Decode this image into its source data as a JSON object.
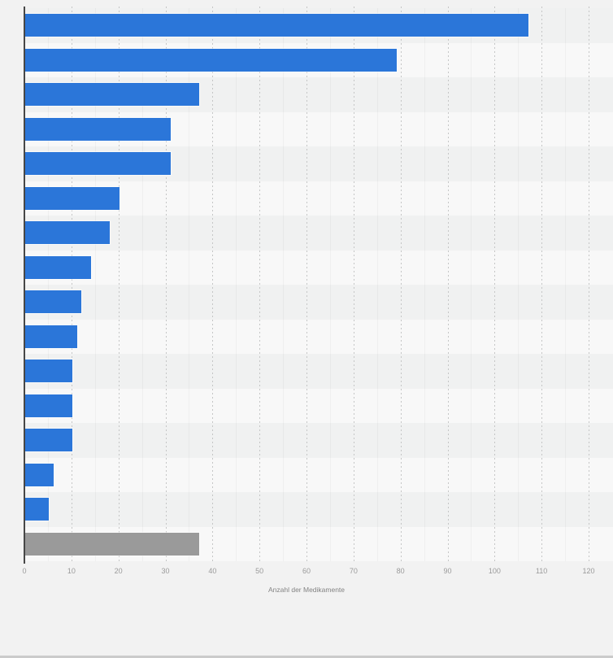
{
  "chart_data": {
    "type": "bar",
    "orientation": "horizontal",
    "title": "",
    "xlabel": "Anzahl der Medikamente",
    "ylabel": "",
    "xlim": [
      0,
      120
    ],
    "x_ticks": [
      0,
      10,
      20,
      30,
      40,
      50,
      60,
      70,
      80,
      90,
      100,
      110,
      120
    ],
    "x_tick_labels": [
      "0",
      "10",
      "20",
      "30",
      "40",
      "50",
      "60",
      "70",
      "80",
      "90",
      "100",
      "110",
      "120"
    ],
    "minor_tick_step": 5,
    "grid": "vertical-dashed-major-with-faint-minor",
    "legend": "none",
    "category_labels_visible": false,
    "values": [
      107,
      79,
      37,
      31,
      31,
      20,
      18,
      14,
      12,
      11,
      10,
      10,
      10,
      6,
      5,
      37
    ],
    "bar_colors": [
      "#2b76d9",
      "#2b76d9",
      "#2b76d9",
      "#2b76d9",
      "#2b76d9",
      "#2b76d9",
      "#2b76d9",
      "#2b76d9",
      "#2b76d9",
      "#2b76d9",
      "#2b76d9",
      "#2b76d9",
      "#2b76d9",
      "#2b76d9",
      "#2b76d9",
      "#9a9a9a"
    ]
  },
  "colors": {
    "accent_blue": "#2b76d9",
    "highlight_gray": "#9a9a9a",
    "background": "#f2f2f2",
    "row_stripe_dark": "#f0f1f1",
    "row_stripe_light": "#f8f8f8",
    "gridline": "#c5c6c6",
    "axis_line": "#474747",
    "tick_text": "#9a9a9a",
    "axis_title_text": "#838383"
  }
}
